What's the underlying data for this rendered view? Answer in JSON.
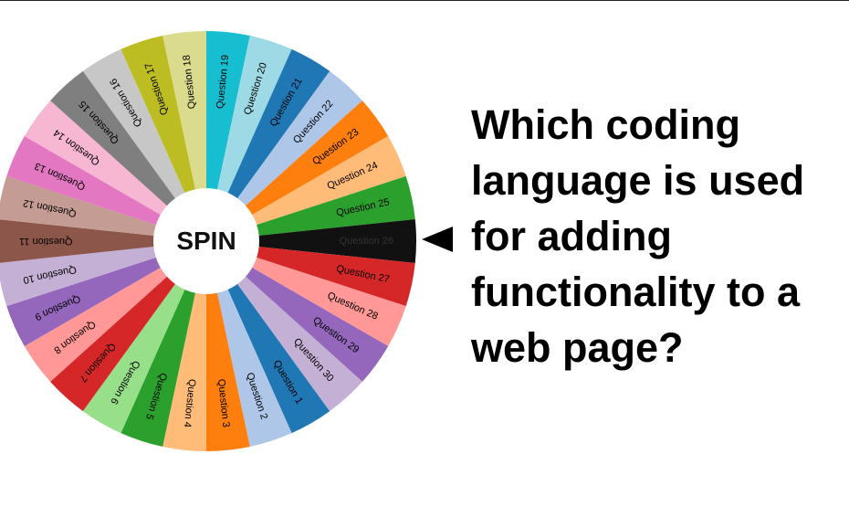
{
  "wheel": {
    "spin_label": "SPIN",
    "pointer_icon": "triangle-left-icon",
    "slices": [
      {
        "label": "Question 1",
        "color": "#1f77b4",
        "text_color": "#000000"
      },
      {
        "label": "Question 2",
        "color": "#aec7e8",
        "text_color": "#000000"
      },
      {
        "label": "Question 3",
        "color": "#ff7f0e",
        "text_color": "#000000"
      },
      {
        "label": "Question 4",
        "color": "#ffbb78",
        "text_color": "#000000"
      },
      {
        "label": "Question 5",
        "color": "#2ca02c",
        "text_color": "#000000"
      },
      {
        "label": "Question 6",
        "color": "#98df8a",
        "text_color": "#000000"
      },
      {
        "label": "Question 7",
        "color": "#d62728",
        "text_color": "#000000"
      },
      {
        "label": "Question 8",
        "color": "#ff9896",
        "text_color": "#000000"
      },
      {
        "label": "Question 9",
        "color": "#9467bd",
        "text_color": "#000000"
      },
      {
        "label": "Question 10",
        "color": "#c5b0d5",
        "text_color": "#000000"
      },
      {
        "label": "Question 11",
        "color": "#8c564b",
        "text_color": "#000000"
      },
      {
        "label": "Question 12",
        "color": "#c49c94",
        "text_color": "#000000"
      },
      {
        "label": "Question 13",
        "color": "#e377c2",
        "text_color": "#000000"
      },
      {
        "label": "Question 14",
        "color": "#f7b6d2",
        "text_color": "#000000"
      },
      {
        "label": "Question 15",
        "color": "#7f7f7f",
        "text_color": "#000000"
      },
      {
        "label": "Question 16",
        "color": "#c7c7c7",
        "text_color": "#000000"
      },
      {
        "label": "Question 17",
        "color": "#bcbd22",
        "text_color": "#000000"
      },
      {
        "label": "Question 18",
        "color": "#dbdb8d",
        "text_color": "#000000"
      },
      {
        "label": "Question 19",
        "color": "#17becf",
        "text_color": "#000000"
      },
      {
        "label": "Question 20",
        "color": "#9edae5",
        "text_color": "#000000"
      },
      {
        "label": "Question 21",
        "color": "#1f77b4",
        "text_color": "#000000"
      },
      {
        "label": "Question 22",
        "color": "#aec7e8",
        "text_color": "#000000"
      },
      {
        "label": "Question 23",
        "color": "#ff7f0e",
        "text_color": "#000000"
      },
      {
        "label": "Question 24",
        "color": "#ffbb78",
        "text_color": "#000000"
      },
      {
        "label": "Question 25",
        "color": "#2ca02c",
        "text_color": "#000000"
      },
      {
        "label": "Question 26",
        "color": "#111111",
        "text_color": "#333333"
      },
      {
        "label": "Question 27",
        "color": "#d62728",
        "text_color": "#000000"
      },
      {
        "label": "Question 28",
        "color": "#ff9896",
        "text_color": "#000000"
      },
      {
        "label": "Question 29",
        "color": "#9467bd",
        "text_color": "#000000"
      },
      {
        "label": "Question 30",
        "color": "#c5b0d5",
        "text_color": "#000000"
      }
    ]
  },
  "question": {
    "text": "Which coding language is used for adding functionality to a web page?"
  }
}
